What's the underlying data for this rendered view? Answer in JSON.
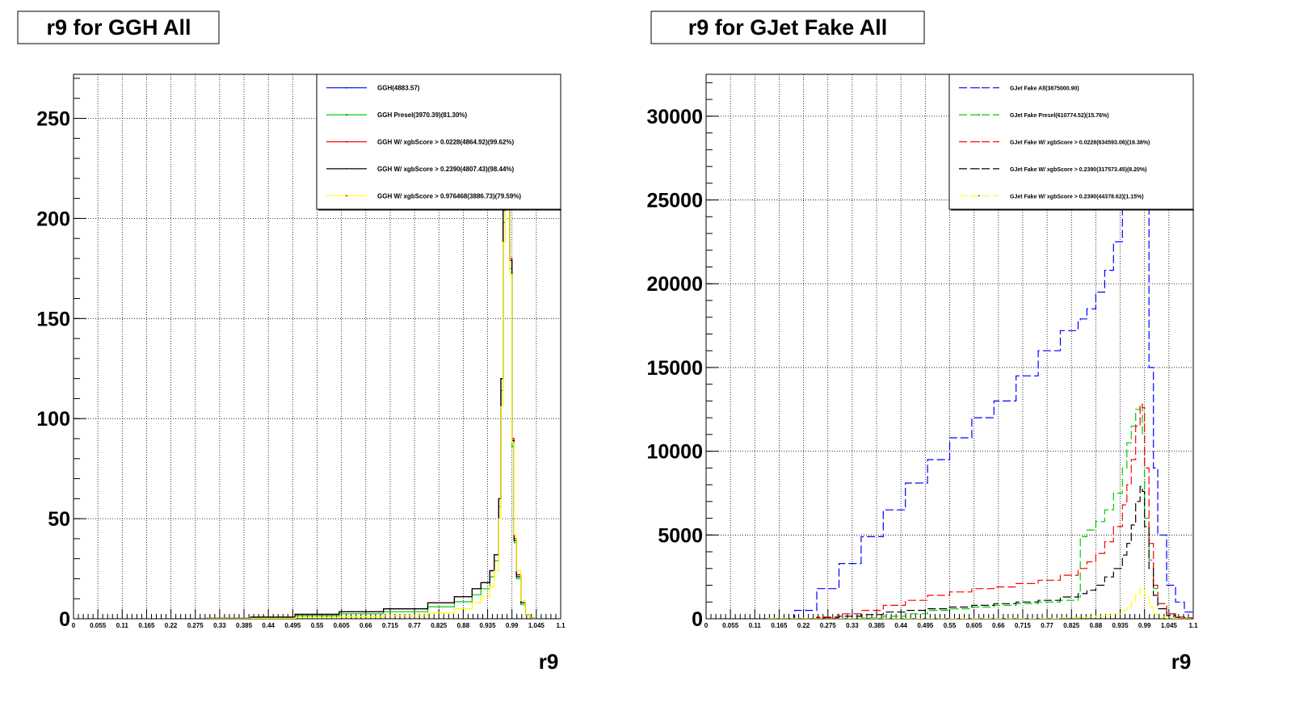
{
  "chart_data": [
    {
      "type": "line",
      "title": "r9 for GGH All",
      "xlabel": "r9",
      "ylabel": "",
      "xlim": [
        0,
        1.1
      ],
      "ylim": [
        0,
        272
      ],
      "grid": true,
      "legend_position": "top-right",
      "x_tick_labels": [
        "0",
        "0.055",
        "0.11",
        "0.165",
        "0.22",
        "0.275",
        "0.33",
        "0.385",
        "0.44",
        "0.495",
        "0.55",
        "0.605",
        "0.66",
        "0.715",
        "0.77",
        "0.825",
        "0.88",
        "0.935",
        "0.99",
        "1.045",
        "1.1"
      ],
      "y_tick_labels": [
        "0",
        "50",
        "100",
        "150",
        "200",
        "250"
      ],
      "x": [
        0.3,
        0.4,
        0.5,
        0.6,
        0.7,
        0.8,
        0.86,
        0.9,
        0.92,
        0.94,
        0.95,
        0.96,
        0.965,
        0.97,
        0.975,
        0.98,
        0.985,
        0.99,
        0.995,
        1.0,
        1.01,
        1.02,
        1.03,
        1.04
      ],
      "series": [
        {
          "name": "GGH(4883.57)",
          "color": "#0000ff",
          "dash": "solid",
          "values": [
            0.2,
            0.8,
            2.2,
            3.5,
            5.0,
            8.0,
            11.0,
            15.0,
            18.0,
            24.0,
            32.0,
            60.0,
            120.0,
            205.0,
            265.0,
            250.0,
            180.0,
            90.0,
            40.0,
            22.0,
            8.0,
            2.0,
            0.5,
            0.0
          ]
        },
        {
          "name": "GGH Presel(3970.39)(81.30%)",
          "color": "#00cc00",
          "dash": "solid",
          "values": [
            0.1,
            0.5,
            1.5,
            2.5,
            3.5,
            6.0,
            8.5,
            12.0,
            15.0,
            21.0,
            29.0,
            56.0,
            114.0,
            198.0,
            258.0,
            244.0,
            175.0,
            86.0,
            38.0,
            20.0,
            7.0,
            2.0,
            0.5,
            0.0
          ]
        },
        {
          "name": "GGH W/ xgbScore > 0.0228(4864.92)(99.62%)",
          "color": "#ff0000",
          "dash": "solid",
          "values": [
            0.2,
            0.8,
            2.2,
            3.5,
            5.0,
            8.0,
            11.0,
            15.0,
            18.0,
            24.0,
            32.0,
            60.0,
            120.0,
            205.0,
            265.0,
            250.0,
            180.0,
            90.0,
            40.0,
            22.0,
            8.0,
            2.0,
            0.5,
            0.0
          ]
        },
        {
          "name": "GGH W/ xgbScore > 0.2390(4807.43)(98.44%)",
          "color": "#000000",
          "dash": "solid",
          "values": [
            0.2,
            0.8,
            2.2,
            3.5,
            5.0,
            8.0,
            11.0,
            15.0,
            18.0,
            24.0,
            32.0,
            60.0,
            120.0,
            204.0,
            264.0,
            249.0,
            179.0,
            89.0,
            39.0,
            21.0,
            8.0,
            2.0,
            0.5,
            0.0
          ]
        },
        {
          "name": "GGH W/ xgbScore > 0.976468(3886.73)(79.59%)",
          "color": "#ffff00",
          "dash": "solid",
          "values": [
            0.0,
            0.2,
            0.6,
            1.0,
            1.5,
            3.0,
            5.0,
            8.0,
            11.0,
            16.0,
            24.0,
            50.0,
            106.0,
            188.0,
            250.0,
            238.0,
            172.0,
            88.0,
            42.0,
            24.0,
            9.0,
            2.0,
            0.5,
            0.0
          ]
        }
      ]
    },
    {
      "type": "line",
      "title": "r9 for GJet Fake All",
      "xlabel": "r9",
      "ylabel": "",
      "xlim": [
        0,
        1.1
      ],
      "ylim": [
        0,
        32500
      ],
      "grid": true,
      "legend_position": "top-right",
      "x_tick_labels": [
        "0",
        "0.055",
        "0.11",
        "0.165",
        "0.22",
        "0.275",
        "0.33",
        "0.385",
        "0.44",
        "0.495",
        "0.55",
        "0.605",
        "0.66",
        "0.715",
        "0.77",
        "0.825",
        "0.88",
        "0.935",
        "0.99",
        "1.045",
        "1.1"
      ],
      "y_tick_labels": [
        "0",
        "5000",
        "10000",
        "15000",
        "20000",
        "25000",
        "30000"
      ],
      "x": [
        0.14,
        0.2,
        0.25,
        0.3,
        0.35,
        0.4,
        0.45,
        0.5,
        0.55,
        0.6,
        0.65,
        0.7,
        0.75,
        0.8,
        0.84,
        0.845,
        0.86,
        0.88,
        0.9,
        0.92,
        0.94,
        0.95,
        0.96,
        0.97,
        0.98,
        0.985,
        0.99,
        1.0,
        1.01,
        1.02,
        1.04,
        1.06,
        1.08,
        1.1
      ],
      "series": [
        {
          "name": "GJet Fake All(3875000.90)",
          "color": "#0000ff",
          "dash": "dashed",
          "values": [
            0,
            500,
            1800,
            3300,
            4900,
            6500,
            8100,
            9500,
            10800,
            12000,
            13000,
            14500,
            16000,
            17200,
            17800,
            17900,
            18500,
            19500,
            20800,
            22500,
            24500,
            26500,
            29000,
            32000,
            33000,
            32000,
            26000,
            15000,
            9000,
            5000,
            2000,
            1000,
            400,
            200
          ]
        },
        {
          "name": "GJet Fake Presel(610774.52)(15.76%)",
          "color": "#00cc00",
          "dash": "dashed",
          "values": [
            0,
            0,
            0,
            0,
            50,
            150,
            300,
            500,
            600,
            700,
            800,
            900,
            1000,
            1100,
            1300,
            4900,
            5300,
            5800,
            6500,
            7500,
            9000,
            10500,
            11500,
            12500,
            12800,
            11000,
            6000,
            3500,
            1800,
            900,
            300,
            100,
            50,
            20
          ]
        },
        {
          "name": "GJet Fake W/ xgbScore > 0.0228(634593.06)(16.38%)",
          "color": "#ff0000",
          "dash": "dashed",
          "values": [
            0,
            0,
            100,
            300,
            500,
            800,
            1100,
            1400,
            1600,
            1800,
            1900,
            2100,
            2300,
            2600,
            2900,
            3000,
            3400,
            3900,
            4600,
            5500,
            6800,
            8000,
            9500,
            11500,
            12800,
            12600,
            9000,
            4500,
            2000,
            900,
            300,
            100,
            50,
            20
          ]
        },
        {
          "name": "GJet Fake W/ xgbScore > 0.2390(317573.45)(8.20%)",
          "color": "#000000",
          "dash": "dashed",
          "values": [
            0,
            0,
            50,
            150,
            250,
            400,
            500,
            600,
            700,
            800,
            900,
            1000,
            1100,
            1300,
            1500,
            1500,
            1700,
            2000,
            2500,
            3000,
            3800,
            4500,
            5600,
            7000,
            7900,
            7600,
            5500,
            3000,
            1400,
            600,
            200,
            80,
            30,
            10
          ]
        },
        {
          "name": "GJet Fake W/ xgbScore > 0.2390(44378.62)(1.15%)",
          "color": "#ffff00",
          "dash": "dashed",
          "values": [
            0,
            0,
            0,
            0,
            0,
            0,
            0,
            0,
            0,
            0,
            0,
            0,
            0,
            50,
            80,
            80,
            100,
            150,
            200,
            300,
            500,
            700,
            1000,
            1500,
            1800,
            1800,
            1400,
            700,
            300,
            100,
            30,
            10,
            0,
            0
          ]
        }
      ]
    }
  ]
}
